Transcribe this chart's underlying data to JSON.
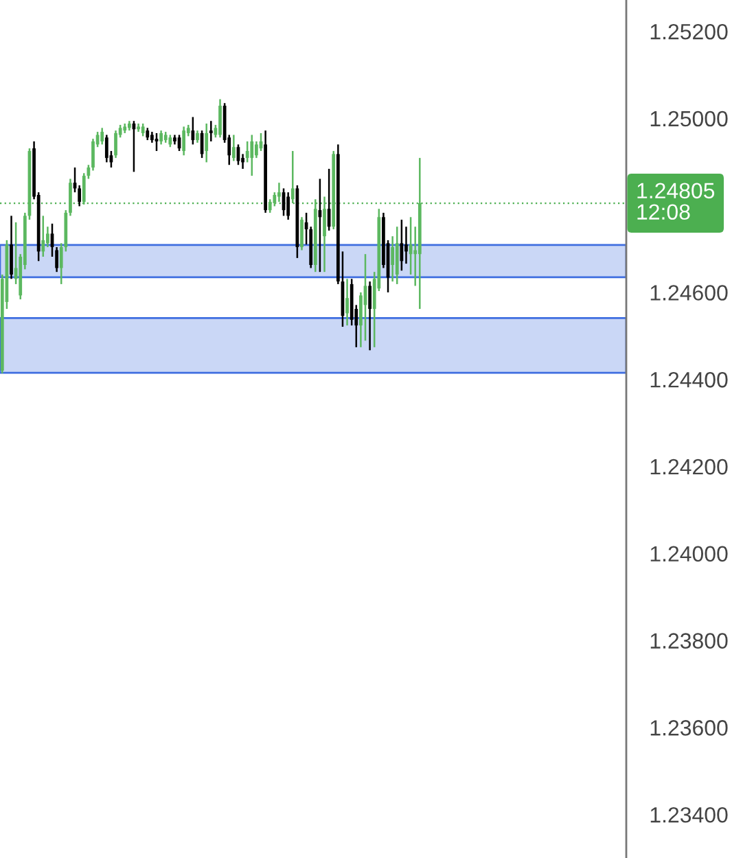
{
  "chart_data": {
    "type": "candlestick",
    "categories": [
      null,
      null,
      null,
      null,
      null,
      null,
      null,
      null,
      null,
      null,
      null,
      null,
      null,
      null,
      null,
      null,
      null,
      null,
      null,
      null,
      null,
      null,
      null,
      null,
      null,
      null,
      null,
      null,
      null,
      null,
      null,
      null,
      null,
      null,
      null,
      null,
      null,
      null,
      null,
      null,
      null,
      null,
      null,
      null,
      null,
      null,
      null,
      null,
      null,
      null,
      null,
      null,
      null,
      null,
      null,
      null,
      null,
      null,
      null,
      null,
      null,
      null,
      null,
      null,
      null,
      null,
      null,
      null,
      null,
      null,
      null,
      null,
      null,
      null,
      null,
      null,
      null,
      null,
      null,
      null,
      null,
      null,
      null,
      null,
      null,
      null,
      null,
      null,
      null,
      null,
      null,
      null,
      null,
      null,
      null,
      null,
      null,
      null,
      null,
      null,
      null,
      null,
      null,
      null,
      null,
      null,
      null,
      null,
      null,
      null,
      null,
      null,
      null,
      null,
      null,
      null,
      null,
      null,
      null,
      null,
      null,
      null,
      null,
      null,
      null,
      null,
      null,
      null,
      null,
      null,
      null,
      null,
      null,
      null,
      null,
      null,
      null,
      null
    ],
    "ohlc": [
      [
        1.2442,
        1.24641,
        1.24414,
        1.24631
      ],
      [
        1.24578,
        1.2472,
        1.24562,
        1.2471
      ],
      [
        1.2471,
        1.24776,
        1.24631,
        1.24641
      ],
      [
        1.24631,
        1.24761,
        1.24619,
        1.24656
      ],
      [
        1.24593,
        1.24688,
        1.24584,
        1.24682
      ],
      [
        1.24663,
        1.24783,
        1.24653,
        1.24776
      ],
      [
        1.24776,
        1.24931,
        1.24767,
        1.24925
      ],
      [
        1.24931,
        1.24947,
        1.24814,
        1.2482
      ],
      [
        1.24824,
        1.2483,
        1.24672,
        1.24694
      ],
      [
        1.24694,
        1.24776,
        1.24682,
        1.2472
      ],
      [
        1.24713,
        1.24751,
        1.24704,
        1.24735
      ],
      [
        1.24735,
        1.24758,
        1.24682,
        1.24704
      ],
      [
        1.24697,
        1.24704,
        1.24647,
        1.24656
      ],
      [
        1.24656,
        1.24713,
        1.24619,
        1.24704
      ],
      [
        1.24704,
        1.24789,
        1.24694,
        1.24783
      ],
      [
        1.24783,
        1.24861,
        1.24776,
        1.24852
      ],
      [
        1.24852,
        1.24887,
        1.2483,
        1.24839
      ],
      [
        1.24839,
        1.24846,
        1.24798,
        1.24808
      ],
      [
        1.24808,
        1.24874,
        1.24802,
        1.24868
      ],
      [
        1.24868,
        1.24893,
        1.24861,
        1.24887
      ],
      [
        1.24887,
        1.24953,
        1.2488,
        1.24947
      ],
      [
        1.2494,
        1.24969,
        1.24934,
        1.24962
      ],
      [
        1.24947,
        1.24978,
        1.2494,
        1.24969
      ],
      [
        1.24956,
        1.24962,
        1.24899,
        1.24909
      ],
      [
        1.24915,
        1.24925,
        1.24887,
        1.24899
      ],
      [
        1.24915,
        1.24972,
        1.24909,
        1.24966
      ],
      [
        1.24962,
        1.24985,
        1.24956,
        1.24978
      ],
      [
        1.24972,
        1.24988,
        1.24966,
        1.24981
      ],
      [
        1.24978,
        1.24994,
        1.24972,
        1.24988
      ],
      [
        1.24988,
        1.24994,
        1.24877,
        1.24975
      ],
      [
        1.24975,
        1.24988,
        1.24969,
        1.24981
      ],
      [
        1.24966,
        1.24988,
        1.24959,
        1.24981
      ],
      [
        1.24972,
        1.24978,
        1.2495,
        1.24956
      ],
      [
        1.24962,
        1.24969,
        1.24944,
        1.2495
      ],
      [
        1.24953,
        1.24966,
        1.24925,
        1.24947
      ],
      [
        1.24947,
        1.24972,
        1.2494,
        1.24966
      ],
      [
        1.2495,
        1.24969,
        1.24944,
        1.24962
      ],
      [
        1.2494,
        1.24962,
        1.24934,
        1.24956
      ],
      [
        1.24956,
        1.24962,
        1.2494,
        1.24947
      ],
      [
        1.24956,
        1.24962,
        1.24925,
        1.24931
      ],
      [
        1.24925,
        1.24981,
        1.24915,
        1.24972
      ],
      [
        1.24966,
        1.24985,
        1.24959,
        1.24978
      ],
      [
        1.24972,
        1.25003,
        1.2494,
        1.2495
      ],
      [
        1.2495,
        1.24972,
        1.24944,
        1.24966
      ],
      [
        1.24966,
        1.24972,
        1.24909,
        1.24918
      ],
      [
        1.24925,
        1.24988,
        1.24899,
        1.24966
      ],
      [
        1.24972,
        1.24994,
        1.24947,
        1.24966
      ],
      [
        1.24962,
        1.24985,
        1.24956,
        1.24978
      ],
      [
        1.24962,
        1.25044,
        1.24956,
        1.25029
      ],
      [
        1.25029,
        1.25035,
        1.24944,
        1.2495
      ],
      [
        1.24956,
        1.24962,
        1.24893,
        1.24915
      ],
      [
        1.24909,
        1.24962,
        1.24902,
        1.24934
      ],
      [
        1.24934,
        1.2494,
        1.24893,
        1.24902
      ],
      [
        1.24909,
        1.24918,
        1.24884,
        1.24899
      ],
      [
        1.24909,
        1.24947,
        1.24899,
        1.24925
      ],
      [
        1.24909,
        1.24962,
        1.24868,
        1.24947
      ],
      [
        1.24915,
        1.24947,
        1.24909,
        1.2494
      ],
      [
        1.24931,
        1.24966,
        1.24925,
        1.24947
      ],
      [
        1.2494,
        1.24972,
        1.24783,
        1.24789
      ],
      [
        1.24789,
        1.24814,
        1.24783,
        1.24808
      ],
      [
        1.24805,
        1.2483,
        1.24798,
        1.24824
      ],
      [
        1.2482,
        1.24852,
        1.24808,
        1.2483
      ],
      [
        1.2483,
        1.24839,
        1.24776,
        1.24789
      ],
      [
        1.2482,
        1.2483,
        1.24767,
        1.24776
      ],
      [
        1.24814,
        1.24925,
        1.24805,
        1.24839
      ],
      [
        1.24839,
        1.24846,
        1.24679,
        1.24704
      ],
      [
        1.24704,
        1.24773,
        1.24697,
        1.24767
      ],
      [
        1.24761,
        1.24783,
        1.2471,
        1.24745
      ],
      [
        1.24745,
        1.24751,
        1.24656,
        1.24663
      ],
      [
        1.24663,
        1.24814,
        1.24647,
        1.24792
      ],
      [
        1.24789,
        1.24861,
        1.24647,
        1.24773
      ],
      [
        1.24729,
        1.2482,
        1.24647,
        1.24792
      ],
      [
        1.24792,
        1.24884,
        1.24742,
        1.24751
      ],
      [
        1.24751,
        1.24925,
        1.24745,
        1.24918
      ],
      [
        1.24918,
        1.2494,
        1.24619,
        1.24625
      ],
      [
        1.24625,
        1.24694,
        1.24521,
        1.24546
      ],
      [
        1.24552,
        1.24631,
        1.24524,
        1.24587
      ],
      [
        1.24619,
        1.24631,
        1.24524,
        1.24537
      ],
      [
        1.24562,
        1.24571,
        1.24474,
        1.24524
      ],
      [
        1.24524,
        1.246,
        1.24474,
        1.24593
      ],
      [
        1.24571,
        1.24688,
        1.24489,
        1.24615
      ],
      [
        1.24615,
        1.24625,
        1.24467,
        1.24562
      ],
      [
        1.24562,
        1.24647,
        1.24474,
        1.24631
      ],
      [
        1.24609,
        1.24792,
        1.24603,
        1.24773
      ],
      [
        1.24773,
        1.24783,
        1.24656,
        1.24663
      ],
      [
        1.24713,
        1.2472,
        1.246,
        1.24634
      ],
      [
        1.24663,
        1.24729,
        1.24625,
        1.24704
      ],
      [
        1.24641,
        1.24751,
        1.24619,
        1.24713
      ],
      [
        1.24713,
        1.24767,
        1.2465,
        1.24672
      ],
      [
        1.2471,
        1.24751,
        1.24666,
        1.24694
      ],
      [
        1.24688,
        1.24773,
        1.24641,
        1.2471
      ],
      [
        1.24688,
        1.24751,
        1.24615,
        1.24697
      ],
      [
        1.24688,
        1.24909,
        1.24562,
        1.24805
      ],
      null,
      null,
      null,
      null,
      null,
      null,
      null,
      null,
      null,
      null,
      null,
      null,
      null,
      null,
      null,
      null,
      null,
      null,
      null,
      null,
      null,
      null,
      null,
      null,
      null,
      null,
      null,
      null,
      null,
      null,
      null,
      null,
      null,
      null,
      null,
      null,
      null,
      null,
      null,
      null,
      null,
      null,
      null,
      null,
      null
    ],
    "colors": [
      "#5cb860",
      "#5cb860",
      "#000000",
      "#5cb860",
      "#5cb860",
      "#5cb860",
      "#5cb860",
      "#000000",
      "#000000",
      "#5cb860",
      "#5cb860",
      "#000000",
      "#000000",
      "#5cb860",
      "#5cb860",
      "#5cb860",
      "#000000",
      "#000000",
      "#5cb860",
      "#5cb860",
      "#5cb860",
      "#5cb860",
      "#5cb860",
      "#000000",
      "#000000",
      "#5cb860",
      "#5cb860",
      "#5cb860",
      "#5cb860",
      "#000000",
      "#5cb860",
      "#5cb860",
      "#000000",
      "#000000",
      "#000000",
      "#5cb860",
      "#5cb860",
      "#5cb860",
      "#000000",
      "#000000",
      "#5cb860",
      "#5cb860",
      "#000000",
      "#5cb860",
      "#000000",
      "#5cb860",
      "#000000",
      "#5cb860",
      "#5cb860",
      "#000000",
      "#000000",
      "#5cb860",
      "#000000",
      "#000000",
      "#5cb860",
      "#5cb860",
      "#5cb860",
      "#5cb860",
      "#000000",
      "#5cb860",
      "#5cb860",
      "#5cb860",
      "#000000",
      "#000000",
      "#5cb860",
      "#000000",
      "#5cb860",
      "#000000",
      "#000000",
      "#5cb860",
      "#000000",
      "#5cb860",
      "#000000",
      "#5cb860",
      "#000000",
      "#000000",
      "#5cb860",
      "#000000",
      "#000000",
      "#5cb860",
      "#5cb860",
      "#000000",
      "#5cb860",
      "#5cb860",
      "#000000",
      "#000000",
      "#5cb860",
      "#5cb860",
      "#000000",
      "#000000",
      "#5cb860",
      "#5cb860",
      "#5cb860",
      null,
      null,
      null,
      null,
      null,
      null,
      null,
      null,
      null,
      null,
      null,
      null,
      null,
      null,
      null,
      null,
      null,
      null,
      null,
      null,
      null,
      null,
      null,
      null,
      null,
      null,
      null,
      null,
      null,
      null,
      null,
      null,
      null,
      null,
      null,
      null,
      null,
      null,
      null,
      null,
      null,
      null,
      null,
      null,
      null
    ],
    "ylim": [
      1.233,
      1.25272
    ],
    "yticks": [
      {
        "value": 1.234,
        "label": "1.23400"
      },
      {
        "value": 1.236,
        "label": "1.23600"
      },
      {
        "value": 1.238,
        "label": "1.23800"
      },
      {
        "value": 1.24,
        "label": "1.24000"
      },
      {
        "value": 1.242,
        "label": "1.24200"
      },
      {
        "value": 1.244,
        "label": "1.24400"
      },
      {
        "value": 1.246,
        "label": "1.24600"
      },
      {
        "value": 1.25,
        "label": "1.25000"
      },
      {
        "value": 1.252,
        "label": "1.25200"
      }
    ],
    "ref_lines": [
      {
        "axis": "y",
        "value": 1.24805,
        "label": "1.24805\n12:08",
        "color": "#4caf50",
        "line_style": "dotted"
      }
    ],
    "bands": [
      {
        "axis": "y",
        "from": 1.24635,
        "to": 1.24709,
        "color": "#3f6ee0"
      },
      {
        "axis": "y",
        "from": 1.24415,
        "to": 1.24541,
        "color": "#3f6ee0"
      }
    ],
    "tick_labels": "y"
  }
}
